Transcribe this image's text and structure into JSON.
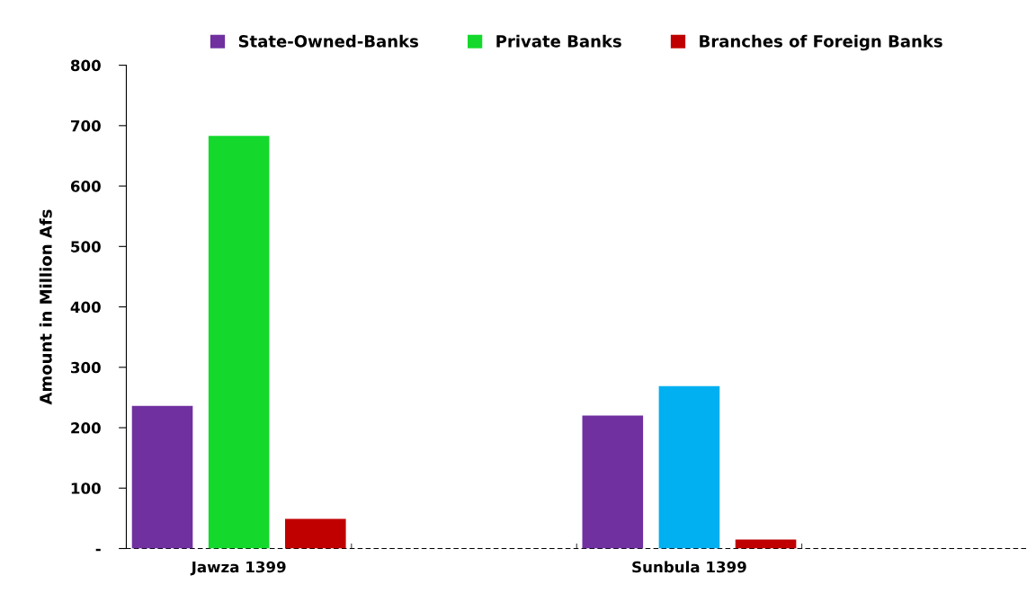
{
  "chart_data": {
    "type": "bar",
    "ylabel": "Amount in Million Afs",
    "categories": [
      "Jawza 1399",
      null,
      "Sunbula 1399",
      null
    ],
    "series": [
      {
        "name": "State-Owned-Banks",
        "color": "#7030a0",
        "values": [
          236,
          null,
          220,
          null
        ]
      },
      {
        "name": "Private Banks",
        "color": "#14d92c",
        "colors": [
          "#14d92c",
          null,
          "#00b0f0",
          null
        ],
        "values": [
          683,
          null,
          269,
          null
        ]
      },
      {
        "name": "Branches of Foreign Banks",
        "color": "#c00000",
        "values": [
          49,
          null,
          15,
          null
        ]
      }
    ],
    "ylim": [
      0,
      800
    ],
    "yticks": [
      {
        "value": 0,
        "label": "-"
      },
      100,
      200,
      300,
      400,
      500,
      600,
      700,
      800
    ],
    "grid": false,
    "legend": "top"
  }
}
